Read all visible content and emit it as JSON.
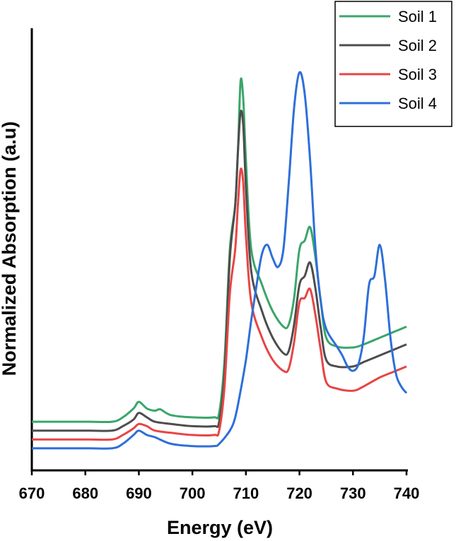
{
  "chart_data": {
    "type": "line",
    "xlabel": "Energy (eV)",
    "ylabel": "Normalized Absorption (a.u)",
    "xlim": [
      670,
      740
    ],
    "ylim": [
      0,
      1.0
    ],
    "x_ticks": [
      670,
      680,
      690,
      700,
      710,
      720,
      730,
      740
    ],
    "legend_position": "top-right",
    "y_tick_labels": false,
    "series": [
      {
        "name": "Soil 1",
        "color": "#3aa66a",
        "points": [
          [
            670,
            0.11
          ],
          [
            680,
            0.11
          ],
          [
            685,
            0.11
          ],
          [
            687,
            0.12
          ],
          [
            689,
            0.14
          ],
          [
            690,
            0.155
          ],
          [
            691.5,
            0.14
          ],
          [
            693,
            0.135
          ],
          [
            694,
            0.138
          ],
          [
            696,
            0.125
          ],
          [
            700,
            0.12
          ],
          [
            704,
            0.12
          ],
          [
            705,
            0.13
          ],
          [
            706,
            0.25
          ],
          [
            707,
            0.5
          ],
          [
            708,
            0.6
          ],
          [
            708.5,
            0.72
          ],
          [
            709,
            0.88
          ],
          [
            709.5,
            0.84
          ],
          [
            710,
            0.7
          ],
          [
            711,
            0.5
          ],
          [
            713,
            0.42
          ],
          [
            715,
            0.36
          ],
          [
            717,
            0.325
          ],
          [
            718,
            0.33
          ],
          [
            719,
            0.39
          ],
          [
            720,
            0.5
          ],
          [
            721,
            0.52
          ],
          [
            722,
            0.55
          ],
          [
            723,
            0.48
          ],
          [
            724,
            0.38
          ],
          [
            725,
            0.3
          ],
          [
            727,
            0.28
          ],
          [
            730,
            0.278
          ],
          [
            732,
            0.285
          ],
          [
            735,
            0.3
          ],
          [
            738,
            0.315
          ],
          [
            740,
            0.325
          ]
        ]
      },
      {
        "name": "Soil 2",
        "color": "#4d4d4d",
        "points": [
          [
            670,
            0.09
          ],
          [
            680,
            0.09
          ],
          [
            685,
            0.09
          ],
          [
            687,
            0.1
          ],
          [
            689,
            0.115
          ],
          [
            690,
            0.13
          ],
          [
            691.5,
            0.12
          ],
          [
            693,
            0.11
          ],
          [
            696,
            0.105
          ],
          [
            700,
            0.1
          ],
          [
            704,
            0.1
          ],
          [
            705,
            0.11
          ],
          [
            706,
            0.22
          ],
          [
            707,
            0.48
          ],
          [
            708,
            0.6
          ],
          [
            708.5,
            0.72
          ],
          [
            709,
            0.81
          ],
          [
            709.5,
            0.78
          ],
          [
            710,
            0.64
          ],
          [
            711,
            0.45
          ],
          [
            713,
            0.36
          ],
          [
            715,
            0.3
          ],
          [
            717,
            0.265
          ],
          [
            718,
            0.27
          ],
          [
            719,
            0.33
          ],
          [
            720,
            0.42
          ],
          [
            721,
            0.44
          ],
          [
            722,
            0.47
          ],
          [
            723,
            0.41
          ],
          [
            724,
            0.32
          ],
          [
            725,
            0.25
          ],
          [
            727,
            0.235
          ],
          [
            730,
            0.235
          ],
          [
            732,
            0.245
          ],
          [
            735,
            0.26
          ],
          [
            738,
            0.275
          ],
          [
            740,
            0.285
          ]
        ]
      },
      {
        "name": "Soil 3",
        "color": "#e84545",
        "points": [
          [
            670,
            0.07
          ],
          [
            680,
            0.07
          ],
          [
            685,
            0.07
          ],
          [
            687,
            0.08
          ],
          [
            689,
            0.095
          ],
          [
            690,
            0.105
          ],
          [
            691.5,
            0.1
          ],
          [
            693,
            0.09
          ],
          [
            696,
            0.085
          ],
          [
            700,
            0.08
          ],
          [
            704,
            0.08
          ],
          [
            705,
            0.09
          ],
          [
            706,
            0.19
          ],
          [
            707,
            0.4
          ],
          [
            708,
            0.5
          ],
          [
            708.5,
            0.6
          ],
          [
            709,
            0.68
          ],
          [
            709.5,
            0.65
          ],
          [
            710,
            0.53
          ],
          [
            711,
            0.38
          ],
          [
            713,
            0.3
          ],
          [
            715,
            0.25
          ],
          [
            717,
            0.225
          ],
          [
            718,
            0.23
          ],
          [
            719,
            0.29
          ],
          [
            720,
            0.38
          ],
          [
            721,
            0.39
          ],
          [
            722,
            0.41
          ],
          [
            723,
            0.35
          ],
          [
            724,
            0.27
          ],
          [
            725,
            0.2
          ],
          [
            727,
            0.185
          ],
          [
            730,
            0.18
          ],
          [
            732,
            0.19
          ],
          [
            735,
            0.21
          ],
          [
            738,
            0.225
          ],
          [
            740,
            0.235
          ]
        ]
      },
      {
        "name": "Soil 4",
        "color": "#2e6fd8",
        "points": [
          [
            670,
            0.05
          ],
          [
            680,
            0.05
          ],
          [
            685,
            0.05
          ],
          [
            687,
            0.06
          ],
          [
            689,
            0.08
          ],
          [
            690,
            0.09
          ],
          [
            691.5,
            0.08
          ],
          [
            693,
            0.075
          ],
          [
            696,
            0.06
          ],
          [
            700,
            0.055
          ],
          [
            704,
            0.055
          ],
          [
            705,
            0.06
          ],
          [
            707,
            0.09
          ],
          [
            708,
            0.12
          ],
          [
            709,
            0.18
          ],
          [
            710,
            0.25
          ],
          [
            711,
            0.34
          ],
          [
            712,
            0.42
          ],
          [
            713,
            0.49
          ],
          [
            714,
            0.51
          ],
          [
            715,
            0.48
          ],
          [
            716,
            0.46
          ],
          [
            717,
            0.5
          ],
          [
            718,
            0.65
          ],
          [
            719,
            0.82
          ],
          [
            720,
            0.9
          ],
          [
            721,
            0.85
          ],
          [
            722,
            0.7
          ],
          [
            723,
            0.5
          ],
          [
            724,
            0.38
          ],
          [
            725,
            0.32
          ],
          [
            727,
            0.28
          ],
          [
            728,
            0.26
          ],
          [
            729,
            0.235
          ],
          [
            730,
            0.225
          ],
          [
            731,
            0.24
          ],
          [
            732,
            0.3
          ],
          [
            733,
            0.42
          ],
          [
            734,
            0.44
          ],
          [
            735,
            0.51
          ],
          [
            736,
            0.43
          ],
          [
            737,
            0.3
          ],
          [
            738,
            0.22
          ],
          [
            739,
            0.19
          ],
          [
            740,
            0.175
          ]
        ]
      }
    ]
  }
}
